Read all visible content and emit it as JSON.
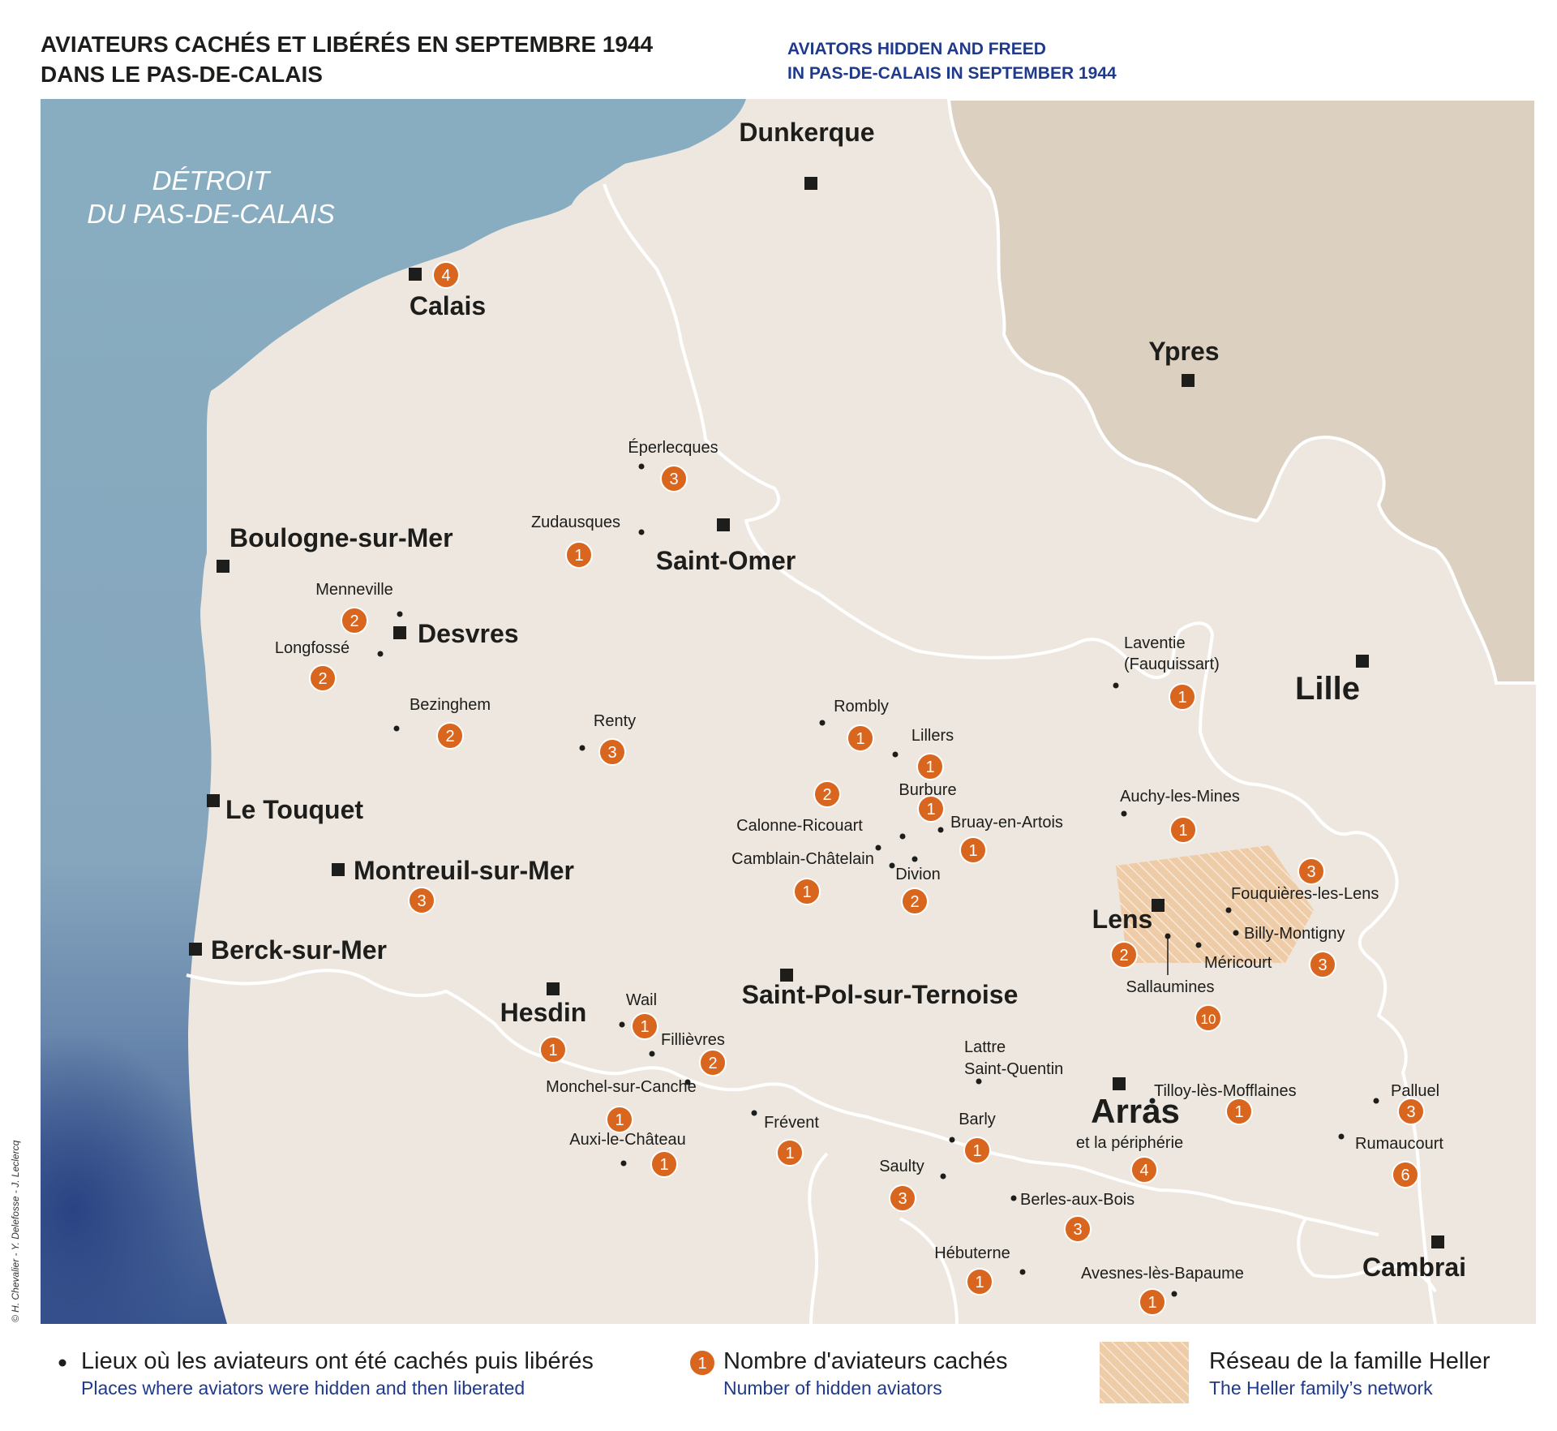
{
  "title": {
    "fr_line1": "AVIATEURS CACHÉS ET LIBÉRÉS EN SEPTEMBRE 1944",
    "fr_line2": "DANS LE PAS-DE-CALAIS",
    "en_line1": "AVIATORS HIDDEN AND FREED",
    "en_line2": "IN PAS-DE-CALAIS IN SEPTEMBER 1944"
  },
  "sea": {
    "line1": "DÉTROIT",
    "line2": "DU PAS-DE-CALAIS"
  },
  "colors": {
    "sea": "#88adc0",
    "sea_deep": "#2e4a86",
    "land": "#ede7df",
    "belgium": "#dcd0c1",
    "border": "#ffffff",
    "badge": "#d9661f",
    "network": "#efc9a4",
    "text": "#1d1d1b",
    "text_en": "#1f3a8a"
  },
  "cities": [
    {
      "id": "dunkerque",
      "name": "Dunkerque"
    },
    {
      "id": "calais",
      "name": "Calais",
      "count": 4
    },
    {
      "id": "ypres",
      "name": "Ypres"
    },
    {
      "id": "boulogne",
      "name": "Boulogne-sur-Mer"
    },
    {
      "id": "saint-omer",
      "name": "Saint-Omer"
    },
    {
      "id": "desvres",
      "name": "Desvres"
    },
    {
      "id": "lille",
      "name": "Lille"
    },
    {
      "id": "le-touquet",
      "name": "Le Touquet"
    },
    {
      "id": "montreuil",
      "name": "Montreuil-sur-Mer",
      "count": 3
    },
    {
      "id": "berck",
      "name": "Berck-sur-Mer"
    },
    {
      "id": "lens",
      "name": "Lens",
      "count": 2
    },
    {
      "id": "hesdin",
      "name": "Hesdin",
      "count": 1
    },
    {
      "id": "saint-pol",
      "name": "Saint-Pol-sur-Ternoise"
    },
    {
      "id": "arras",
      "name": "Arras",
      "count": 4
    },
    {
      "id": "cambrai",
      "name": "Cambrai"
    }
  ],
  "arras_sub": "et la périphérie",
  "places": [
    {
      "id": "eperlecques",
      "name": "Éperlecques",
      "count": 3
    },
    {
      "id": "zudausques",
      "name": "Zudausques",
      "count": 1
    },
    {
      "id": "menneville",
      "name": "Menneville",
      "count": 2
    },
    {
      "id": "longfosse",
      "name": "Longfossé",
      "count": 2
    },
    {
      "id": "bezinghem",
      "name": "Bezinghem",
      "count": 2
    },
    {
      "id": "renty",
      "name": "Renty",
      "count": 3
    },
    {
      "id": "laventie",
      "name": "Laventie",
      "name2": "(Fauquissart)",
      "count": 1
    },
    {
      "id": "rombly",
      "name": "Rombly",
      "count": 1
    },
    {
      "id": "lillers",
      "name": "Lillers",
      "count": 1
    },
    {
      "id": "burbure",
      "name": "Burbure",
      "count": 1
    },
    {
      "id": "calonne",
      "name": "Calonne-Ricouart",
      "count": 2
    },
    {
      "id": "bruay",
      "name": "Bruay-en-Artois",
      "count": 1
    },
    {
      "id": "auchy",
      "name": "Auchy-les-Mines",
      "count": 1
    },
    {
      "id": "camblain",
      "name": "Camblain-Châtelain",
      "count": 1
    },
    {
      "id": "divion",
      "name": "Divion",
      "count": 2
    },
    {
      "id": "fouquieres",
      "name": "Fouquières-les-Lens",
      "count": 3
    },
    {
      "id": "billy",
      "name": "Billy-Montigny",
      "count": 3
    },
    {
      "id": "mericourt",
      "name": "Méricourt"
    },
    {
      "id": "sallaumines",
      "name": "Sallaumines",
      "count": 10
    },
    {
      "id": "wail",
      "name": "Wail",
      "count": 1
    },
    {
      "id": "fillievres",
      "name": "Fillièvres",
      "count": 2
    },
    {
      "id": "monchel",
      "name": "Monchel-sur-Canche",
      "count": 1
    },
    {
      "id": "auxi",
      "name": "Auxi-le-Château",
      "count": 1
    },
    {
      "id": "frevent",
      "name": "Frévent",
      "count": 1
    },
    {
      "id": "lattre",
      "name": "Lattre",
      "name2": "Saint-Quentin"
    },
    {
      "id": "tilloy",
      "name": "Tilloy-lès-Mofflaines",
      "count": 1
    },
    {
      "id": "palluel",
      "name": "Palluel",
      "count": 3
    },
    {
      "id": "barly",
      "name": "Barly",
      "count": 1
    },
    {
      "id": "rumaucourt",
      "name": "Rumaucourt",
      "count": 6
    },
    {
      "id": "saulty",
      "name": "Saulty",
      "count": 3
    },
    {
      "id": "berles",
      "name": "Berles-aux-Bois",
      "count": 3
    },
    {
      "id": "hebuterne",
      "name": "Hébuterne",
      "count": 1
    },
    {
      "id": "avesnes",
      "name": "Avesnes-lès-Bapaume",
      "count": 1
    }
  ],
  "legend": {
    "places_fr": "Lieux où les aviateurs ont été cachés puis libérés",
    "places_en": "Places where aviators were hidden and then liberated",
    "count_badge": "1",
    "count_fr": "Nombre d'aviateurs cachés",
    "count_en": "Number of hidden aviators",
    "network_fr": "Réseau de la famille Heller",
    "network_en": "The Heller family’s network"
  },
  "credit": "© H. Chevalier - Y. Delefosse - J. Leclercq"
}
